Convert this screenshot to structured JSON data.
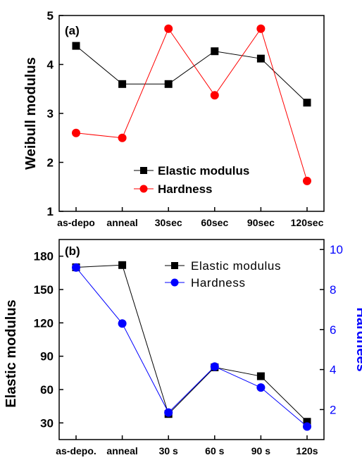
{
  "chart_data": [
    {
      "type": "line",
      "panel_label": "(a)",
      "categories": [
        "as-depo",
        "anneal",
        "30sec",
        "60sec",
        "90sec",
        "120sec"
      ],
      "ylabel": "Weibull modulus",
      "ylim": [
        1,
        5
      ],
      "yticks": [
        1,
        2,
        3,
        4,
        5
      ],
      "grid": false,
      "legend_position": "bottom-right",
      "series": [
        {
          "name": "Elastic modulus",
          "color": "#000000",
          "marker": "square",
          "values": [
            4.38,
            3.6,
            3.6,
            4.27,
            4.12,
            3.22
          ]
        },
        {
          "name": "Hardness",
          "color": "#ff0000",
          "marker": "circle",
          "values": [
            2.6,
            2.5,
            4.73,
            3.37,
            4.73,
            1.62
          ]
        }
      ]
    },
    {
      "type": "line",
      "panel_label": "(b)",
      "categories": [
        "as-depo.",
        "anneal",
        "30 s",
        "60 s",
        "90 s",
        "120s"
      ],
      "ylabel": "Elastic modulus",
      "ylabel_right": "Hardnees",
      "ylim": [
        15,
        195
      ],
      "yticks": [
        30,
        60,
        90,
        120,
        150,
        180
      ],
      "ylim_right": [
        0.5,
        10.5
      ],
      "yticks_right": [
        2,
        4,
        6,
        8,
        10
      ],
      "right_axis_color": "#0000ff",
      "grid": false,
      "legend_position": "top-right",
      "series": [
        {
          "name": "Elastic modulus",
          "color": "#000000",
          "marker": "square",
          "axis": "left",
          "values": [
            170,
            172,
            38,
            80,
            72,
            31
          ]
        },
        {
          "name": "Hardness",
          "color": "#0000ff",
          "marker": "circle",
          "axis": "right",
          "values": [
            9.1,
            6.3,
            1.85,
            4.15,
            3.1,
            1.15
          ]
        }
      ]
    }
  ]
}
